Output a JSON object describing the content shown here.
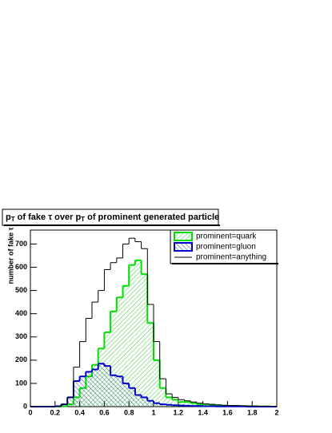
{
  "chart_data": {
    "type": "histogram",
    "title_parts": [
      "p",
      "T",
      " of fake τ over p",
      "T",
      " of prominent generated particle"
    ],
    "y_label": "number of fake τ",
    "bins": [
      0,
      0.05,
      0.1,
      0.15,
      0.2,
      0.25,
      0.3,
      0.35,
      0.4,
      0.45,
      0.5,
      0.55,
      0.6,
      0.65,
      0.7,
      0.75,
      0.8,
      0.85,
      0.9,
      0.95,
      1,
      1.05,
      1.1,
      1.15,
      1.2,
      1.25,
      1.3,
      1.35,
      1.4,
      1.45,
      1.5,
      1.55,
      1.6,
      1.65,
      1.7,
      1.75,
      1.8,
      1.85,
      1.9,
      1.95,
      2
    ],
    "series": [
      {
        "name": "prominent=quark",
        "color": "#00e000",
        "hatch": "forward",
        "values": [
          0,
          0,
          0,
          0,
          0,
          2,
          10,
          40,
          80,
          130,
          180,
          250,
          320,
          410,
          470,
          520,
          610,
          630,
          570,
          360,
          200,
          80,
          40,
          30,
          20,
          20,
          15,
          10,
          10,
          8,
          5,
          4,
          3,
          3,
          2,
          2,
          1,
          1,
          1,
          0
        ]
      },
      {
        "name": "prominent=gluon",
        "color": "#0000cc",
        "hatch": "backward",
        "values": [
          0,
          0,
          0,
          0,
          2,
          10,
          40,
          110,
          130,
          150,
          160,
          185,
          175,
          135,
          130,
          100,
          80,
          50,
          40,
          25,
          15,
          10,
          8,
          6,
          5,
          4,
          3,
          3,
          2,
          2,
          1,
          1,
          1,
          1,
          1,
          0,
          0,
          0,
          0,
          0
        ]
      },
      {
        "name": "prominent=anything",
        "color": "#000000",
        "hatch": "none",
        "values": [
          0,
          0,
          0,
          0,
          2,
          10,
          40,
          170,
          280,
          380,
          450,
          500,
          590,
          620,
          640,
          700,
          725,
          710,
          680,
          440,
          280,
          120,
          55,
          40,
          30,
          25,
          20,
          15,
          12,
          10,
          8,
          6,
          5,
          5,
          4,
          3,
          3,
          2,
          2,
          1
        ]
      }
    ],
    "xlim": [
      0,
      2
    ],
    "xticks": [
      0,
      0.2,
      0.4,
      0.6,
      0.8,
      1,
      1.2,
      1.4,
      1.6,
      1.8,
      2
    ],
    "ylim": [
      0,
      760
    ],
    "yticks": [
      0,
      100,
      200,
      300,
      400,
      500,
      600,
      700
    ]
  }
}
